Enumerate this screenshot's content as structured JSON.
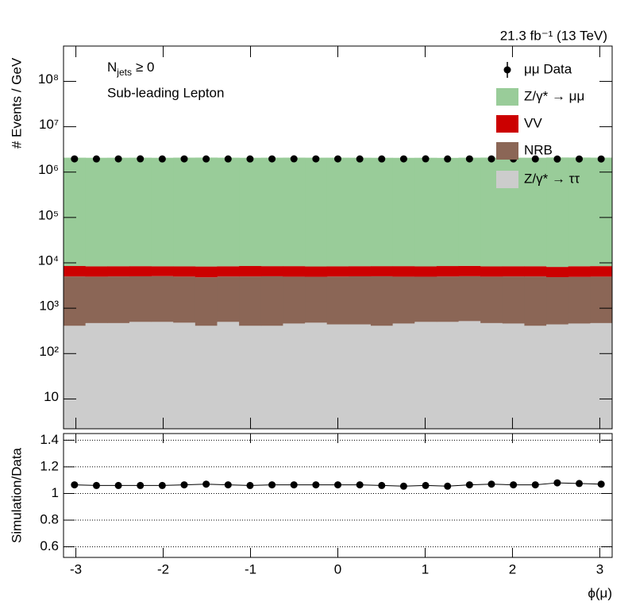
{
  "chart_data": [
    {
      "type": "stacked_histogram",
      "title": "21.3 fb⁻¹ (13 TeV)",
      "annotation": {
        "text": "N",
        "subscript": "jets",
        "suffix": "≥ 0"
      },
      "subtitle": "Sub-leading Lepton",
      "ylabel": "# Events / GeV",
      "log_y": true,
      "bins": [
        -3.1416,
        -2.8903,
        -2.6389,
        -2.3876,
        -2.1363,
        -1.885,
        -1.6336,
        -1.3823,
        -1.131,
        -0.8796,
        -0.6283,
        -0.377,
        -0.1257,
        0.1257,
        0.377,
        0.6283,
        0.8796,
        1.131,
        1.3823,
        1.6336,
        1.885,
        2.1363,
        2.3876,
        2.6389,
        2.8903,
        3.1416
      ],
      "xlim": [
        -3.1416,
        3.1416
      ],
      "ylim": [
        2.2,
        600000000
      ],
      "yticks": [
        {
          "value": 10,
          "label": "10"
        },
        {
          "value": 100,
          "label": "10²"
        },
        {
          "value": 1000,
          "label": "10³"
        },
        {
          "value": 10000,
          "label": "10⁴"
        },
        {
          "value": 100000,
          "label": "10⁵"
        },
        {
          "value": 1000000,
          "label": "10⁶"
        },
        {
          "value": 10000000,
          "label": "10⁷"
        },
        {
          "value": 100000000,
          "label": "10⁸"
        }
      ],
      "series": [
        {
          "name": "Z/γ* → ττ",
          "color": "#cccccc",
          "values": [
            410,
            470,
            470,
            500,
            500,
            480,
            410,
            500,
            410,
            410,
            460,
            480,
            440,
            440,
            410,
            460,
            500,
            500,
            520,
            470,
            460,
            410,
            440,
            460,
            470
          ]
        },
        {
          "name": "NRB",
          "color": "#8b6656",
          "values": [
            4600,
            4500,
            4550,
            4550,
            4600,
            4500,
            4400,
            4500,
            4600,
            4650,
            4500,
            4450,
            4550,
            4600,
            4650,
            4500,
            4450,
            4500,
            4550,
            4500,
            4550,
            4600,
            4400,
            4450,
            4500
          ]
        },
        {
          "name": "VV",
          "color": "#cc0000",
          "values": [
            3500,
            3400,
            3400,
            3400,
            3300,
            3400,
            3500,
            3400,
            3500,
            3400,
            3500,
            3400,
            3400,
            3400,
            3400,
            3500,
            3400,
            3500,
            3500,
            3400,
            3400,
            3400,
            3300,
            3500,
            3500
          ]
        },
        {
          "name": "Z/γ* → μμ",
          "color": "#99cc99",
          "values": [
            2070000,
            2060000,
            2065000,
            2070000,
            2060000,
            2075000,
            2080000,
            2070000,
            2060000,
            2070000,
            2075000,
            2070000,
            2070000,
            2065000,
            2060000,
            2055000,
            2060000,
            2050000,
            2070000,
            2080000,
            2070000,
            2065000,
            2090000,
            2085000,
            2075000
          ]
        }
      ],
      "data": {
        "name": "μμ Data",
        "color": "#000000",
        "values": [
          1955000,
          1950000,
          1955000,
          1960000,
          1950000,
          1955000,
          1950000,
          1950000,
          1950000,
          1955000,
          1960000,
          1955000,
          1955000,
          1950000,
          1950000,
          1955000,
          1960000,
          1950000,
          1955000,
          1955000,
          1950000,
          1950000,
          1940000,
          1945000,
          1945000
        ]
      }
    },
    {
      "type": "ratio",
      "ylabel": "Simulation/Data",
      "xlabel": "ϕ(μ)",
      "xlim": [
        -3.1416,
        3.1416
      ],
      "xticks": [
        -3,
        -2,
        -1,
        0,
        1,
        2,
        3
      ],
      "ylim": [
        0.52,
        1.45
      ],
      "yticks": [
        0.6,
        0.8,
        1,
        1.2,
        1.4
      ],
      "grid": true,
      "color": "#000000",
      "values": [
        1.065,
        1.06,
        1.06,
        1.06,
        1.06,
        1.065,
        1.07,
        1.065,
        1.06,
        1.065,
        1.065,
        1.065,
        1.065,
        1.065,
        1.06,
        1.055,
        1.06,
        1.055,
        1.065,
        1.07,
        1.065,
        1.065,
        1.08,
        1.075,
        1.07
      ]
    }
  ]
}
